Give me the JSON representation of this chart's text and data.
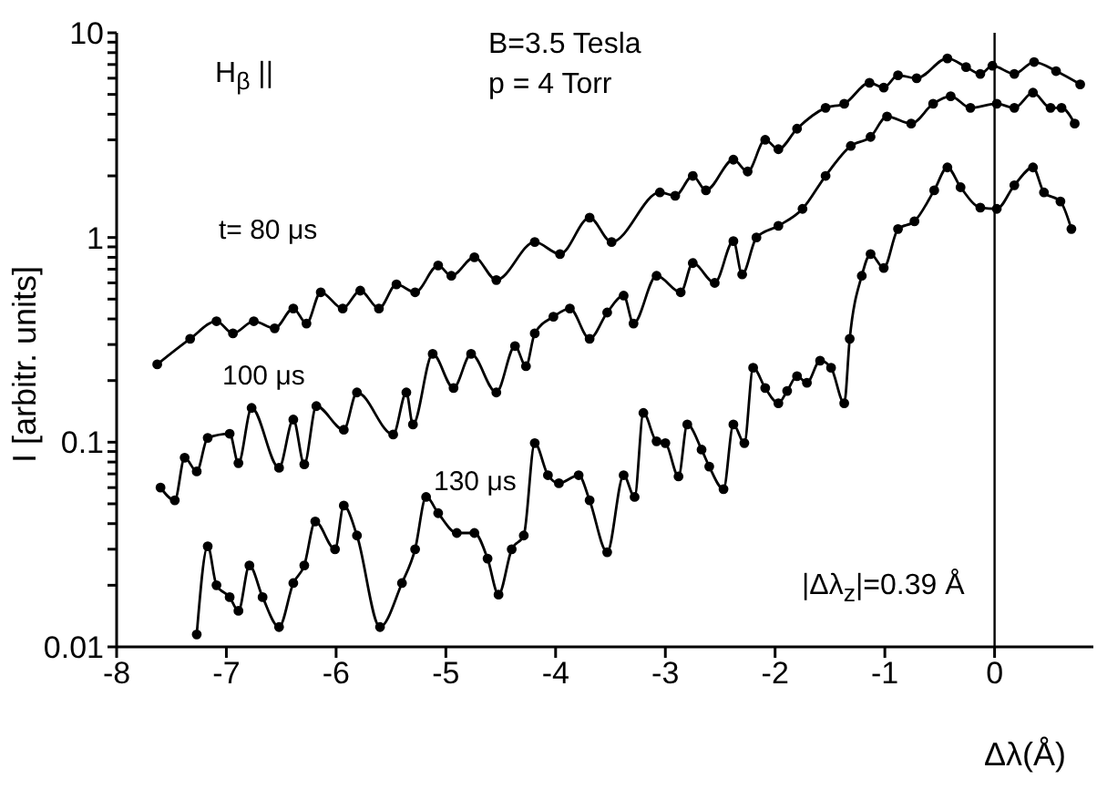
{
  "chart_data": {
    "type": "line",
    "xlabel": "Δλ(Å)",
    "ylabel": "I [arbitr. units]",
    "log": "y",
    "marker": "circle",
    "line_style": "solid",
    "xlim": [
      -8,
      0.9
    ],
    "xticks": [
      -8,
      -7,
      -6,
      -5,
      -4,
      -3,
      -2,
      -1,
      0
    ],
    "ylim": [
      0.01,
      10
    ],
    "yticks": [
      0.01,
      {
        "value": 0.02,
        "label": null
      },
      {
        "value": 0.03,
        "label": null
      },
      {
        "value": 0.04,
        "label": null
      },
      {
        "value": 0.05,
        "label": null
      },
      {
        "value": 0.06,
        "label": null
      },
      {
        "value": 0.07,
        "label": null
      },
      {
        "value": 0.08,
        "label": null
      },
      {
        "value": 0.09,
        "label": null
      },
      0.1,
      {
        "value": 0.2,
        "label": null
      },
      {
        "value": 0.3,
        "label": null
      },
      {
        "value": 0.4,
        "label": null
      },
      {
        "value": 0.5,
        "label": null
      },
      {
        "value": 0.6,
        "label": null
      },
      {
        "value": 0.7,
        "label": null
      },
      {
        "value": 0.8,
        "label": null
      },
      {
        "value": 0.9,
        "label": null
      },
      1,
      {
        "value": 2,
        "label": null
      },
      {
        "value": 3,
        "label": null
      },
      {
        "value": 4,
        "label": null
      },
      {
        "value": 5,
        "label": null
      },
      {
        "value": 6,
        "label": null
      },
      {
        "value": 7,
        "label": null
      },
      {
        "value": 8,
        "label": null
      },
      {
        "value": 9,
        "label": null
      },
      10
    ],
    "ref_lines": [
      {
        "axis": "x",
        "value": 0,
        "color": "#000000"
      }
    ],
    "annotations": [
      "H$_{β}$ ||",
      "B=3.5 Tesla",
      "p = 4 Torr",
      "|Δλ$_{z}$|=0.39 Å"
    ],
    "series": [
      {
        "name": "t= 80 μs",
        "color": "#000000",
        "x": [
          -7.63,
          -7.33,
          -7.09,
          -6.94,
          -6.75,
          -6.56,
          -6.39,
          -6.27,
          -6.14,
          -5.94,
          -5.78,
          -5.61,
          -5.45,
          -5.28,
          -5.07,
          -4.95,
          -4.74,
          -4.54,
          -4.19,
          -3.96,
          -3.69,
          -3.49,
          -3.05,
          -2.91,
          -2.75,
          -2.63,
          -2.38,
          -2.25,
          -2.09,
          -1.97,
          -1.8,
          -1.54,
          -1.37,
          -1.14,
          -1.01,
          -0.88,
          -0.71,
          -0.43,
          -0.26,
          -0.13,
          -0.02,
          0.18,
          0.36,
          0.56,
          0.78
        ],
        "values": [
          0.24,
          0.32,
          0.39,
          0.34,
          0.39,
          0.36,
          0.45,
          0.38,
          0.54,
          0.45,
          0.55,
          0.45,
          0.59,
          0.54,
          0.73,
          0.65,
          0.8,
          0.62,
          0.95,
          0.83,
          1.25,
          0.95,
          1.66,
          1.6,
          2.0,
          1.7,
          2.4,
          2.1,
          3.0,
          2.7,
          3.4,
          4.3,
          4.5,
          5.7,
          5.4,
          6.2,
          6.0,
          7.5,
          6.8,
          6.3,
          6.9,
          6.3,
          7.2,
          6.5,
          5.6
        ]
      },
      {
        "name": "100 μs",
        "color": "#000000",
        "x": [
          -7.6,
          -7.47,
          -7.38,
          -7.27,
          -7.17,
          -6.97,
          -6.89,
          -6.77,
          -6.52,
          -6.39,
          -6.29,
          -6.18,
          -5.93,
          -5.81,
          -5.48,
          -5.36,
          -5.3,
          -5.12,
          -4.93,
          -4.77,
          -4.54,
          -4.37,
          -4.27,
          -4.19,
          -4.02,
          -3.87,
          -3.69,
          -3.53,
          -3.38,
          -3.29,
          -3.08,
          -2.86,
          -2.75,
          -2.55,
          -2.38,
          -2.3,
          -2.17,
          -1.97,
          -1.75,
          -1.54,
          -1.31,
          -1.13,
          -0.98,
          -0.76,
          -0.56,
          -0.4,
          -0.22,
          0.02,
          0.18,
          0.35,
          0.51,
          0.61,
          0.73
        ],
        "values": [
          0.06,
          0.052,
          0.084,
          0.072,
          0.105,
          0.11,
          0.079,
          0.147,
          0.075,
          0.129,
          0.078,
          0.15,
          0.115,
          0.175,
          0.109,
          0.175,
          0.122,
          0.27,
          0.184,
          0.27,
          0.175,
          0.295,
          0.235,
          0.34,
          0.41,
          0.45,
          0.32,
          0.43,
          0.52,
          0.38,
          0.65,
          0.54,
          0.75,
          0.6,
          0.96,
          0.66,
          1.0,
          1.14,
          1.38,
          2.0,
          2.8,
          3.1,
          3.9,
          3.6,
          4.5,
          4.9,
          4.3,
          4.5,
          4.3,
          5.1,
          4.3,
          4.3,
          3.6
        ]
      },
      {
        "name": "130 μs",
        "color": "#000000",
        "x": [
          -7.27,
          -7.17,
          -7.09,
          -6.97,
          -6.89,
          -6.79,
          -6.67,
          -6.52,
          -6.39,
          -6.29,
          -6.19,
          -6.01,
          -5.93,
          -5.81,
          -5.6,
          -5.4,
          -5.28,
          -5.18,
          -5.07,
          -4.9,
          -4.74,
          -4.62,
          -4.52,
          -4.4,
          -4.29,
          -4.19,
          -4.07,
          -3.97,
          -3.79,
          -3.69,
          -3.53,
          -3.38,
          -3.28,
          -3.2,
          -3.08,
          -3.0,
          -2.88,
          -2.8,
          -2.67,
          -2.6,
          -2.47,
          -2.38,
          -2.28,
          -2.2,
          -2.09,
          -1.97,
          -1.89,
          -1.8,
          -1.71,
          -1.59,
          -1.49,
          -1.37,
          -1.32,
          -1.21,
          -1.13,
          -1.01,
          -0.88,
          -0.73,
          -0.55,
          -0.43,
          -0.31,
          -0.13,
          0.02,
          0.18,
          0.35,
          0.45,
          0.6,
          0.7
        ],
        "values": [
          0.0115,
          0.031,
          0.02,
          0.0175,
          0.015,
          0.025,
          0.0175,
          0.0125,
          0.0205,
          0.025,
          0.041,
          0.03,
          0.049,
          0.035,
          0.0125,
          0.0205,
          0.03,
          0.054,
          0.045,
          0.036,
          0.036,
          0.027,
          0.018,
          0.03,
          0.035,
          0.099,
          0.069,
          0.063,
          0.069,
          0.052,
          0.029,
          0.069,
          0.054,
          0.139,
          0.101,
          0.099,
          0.068,
          0.122,
          0.092,
          0.076,
          0.059,
          0.122,
          0.099,
          0.231,
          0.184,
          0.155,
          0.178,
          0.21,
          0.195,
          0.25,
          0.231,
          0.155,
          0.32,
          0.65,
          0.83,
          0.71,
          1.1,
          1.2,
          1.7,
          2.2,
          1.76,
          1.4,
          1.38,
          1.8,
          2.2,
          1.66,
          1.5,
          1.1
        ]
      }
    ]
  }
}
